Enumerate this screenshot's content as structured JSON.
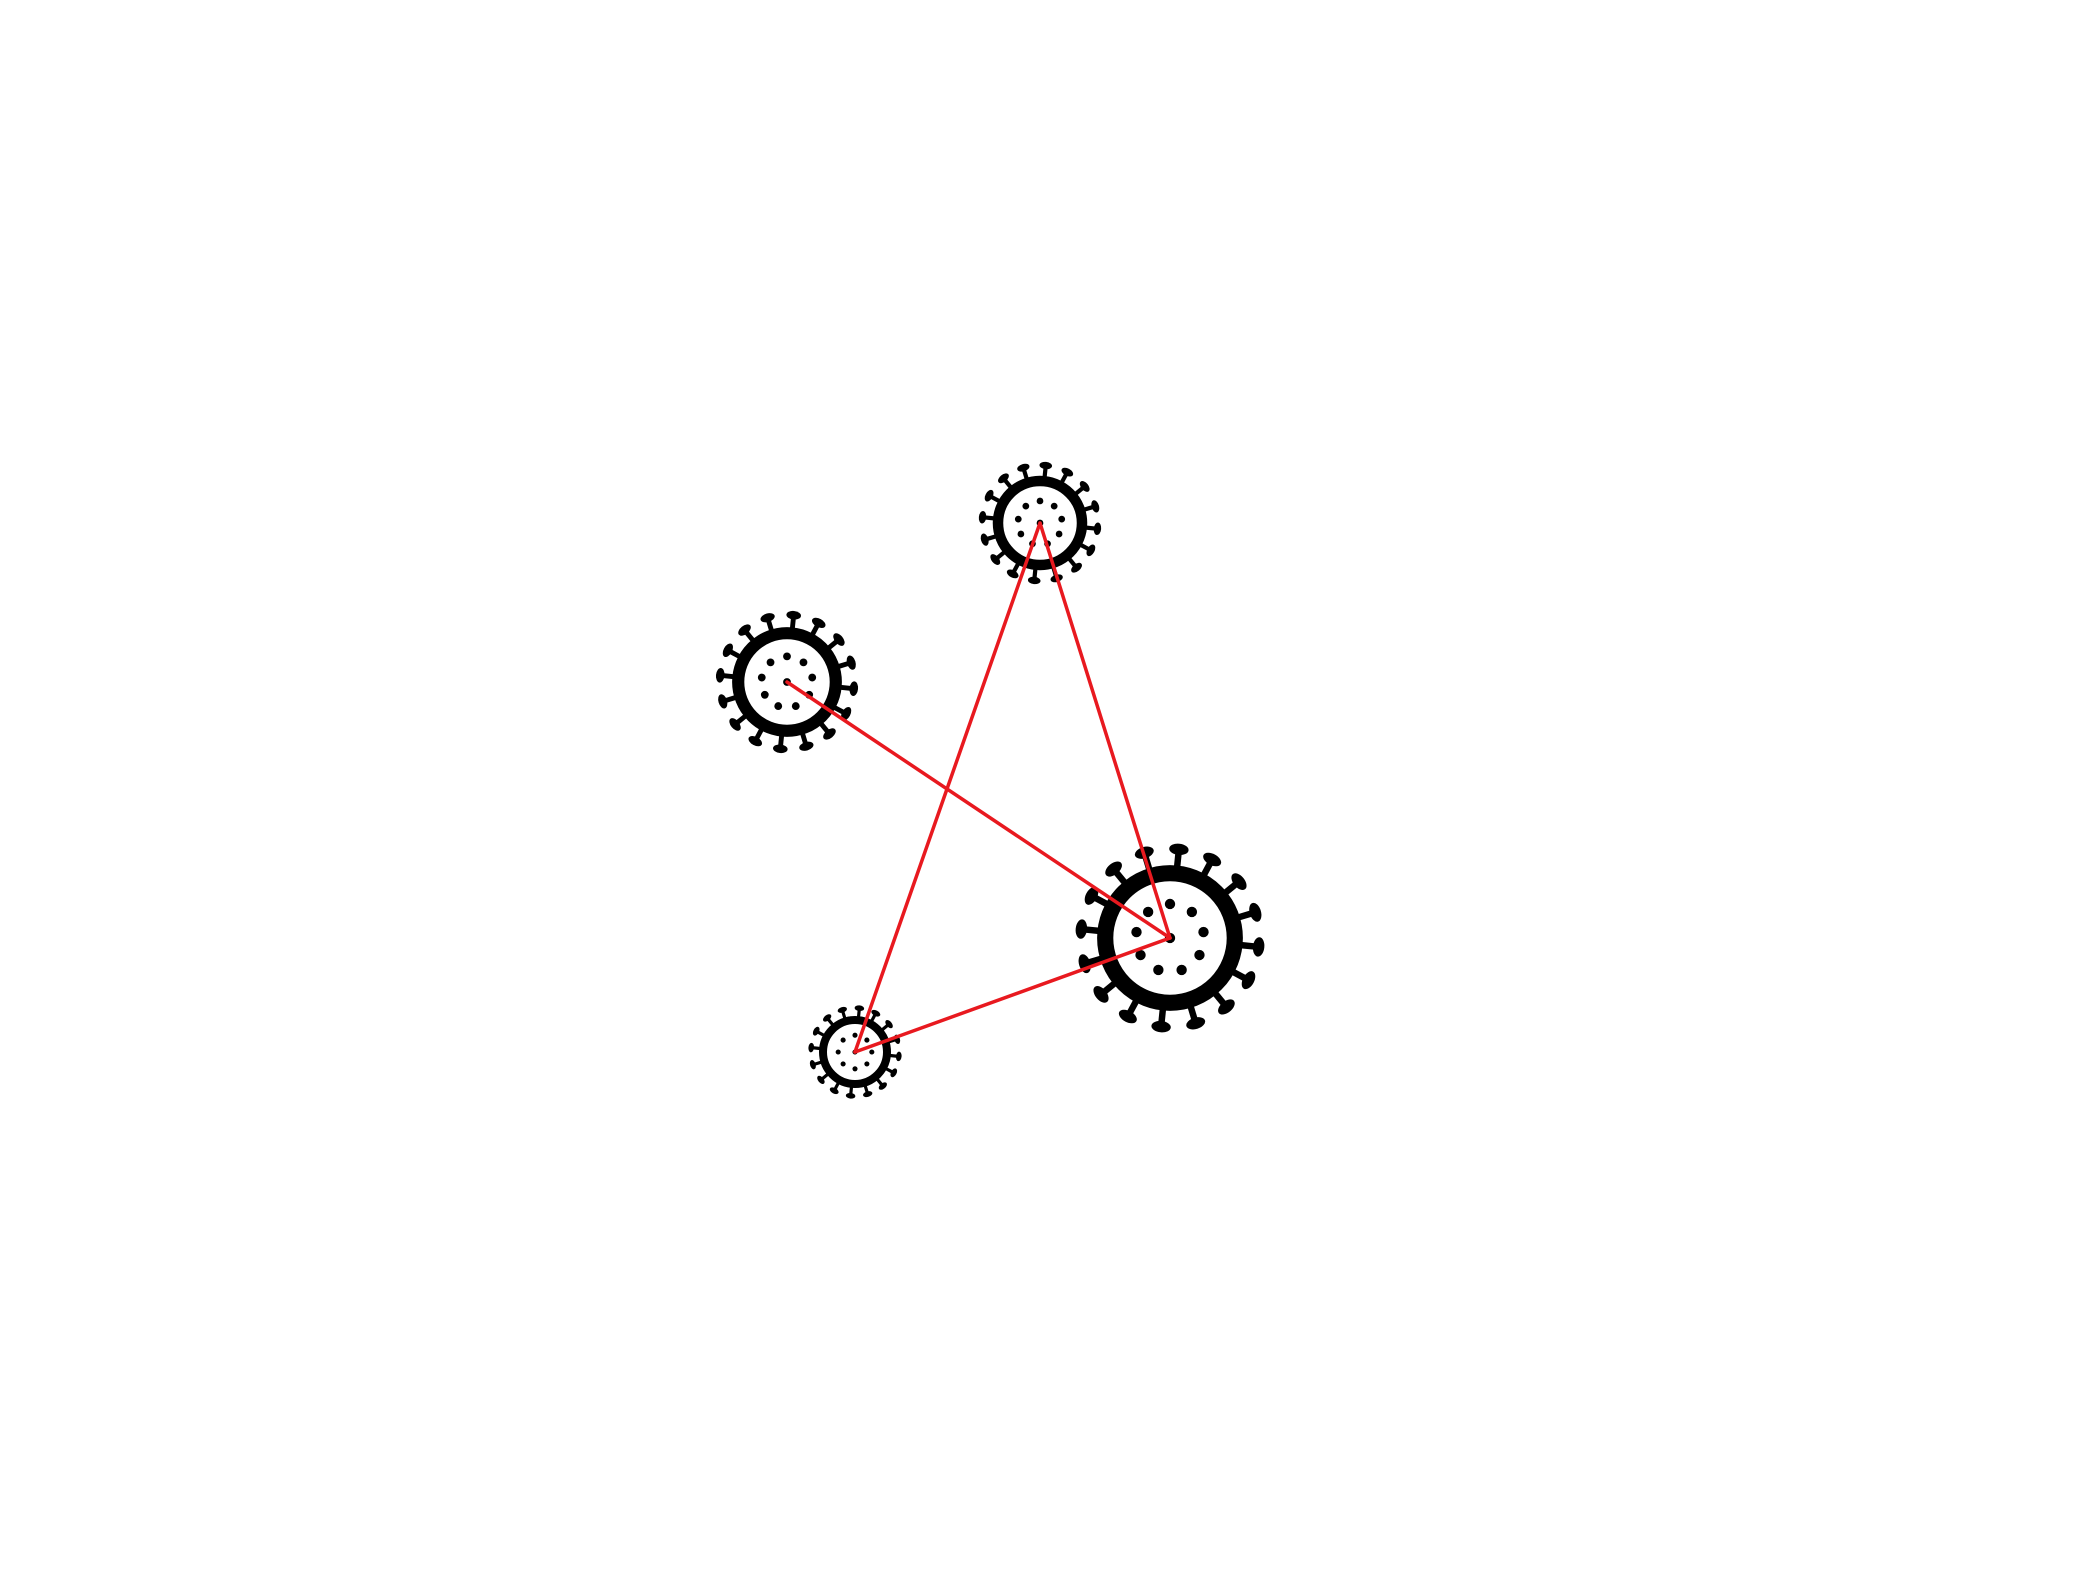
{
  "diagram": {
    "type": "network",
    "nodes": [
      {
        "id": "virus-top",
        "icon": "virus-icon"
      },
      {
        "id": "virus-left",
        "icon": "virus-icon"
      },
      {
        "id": "virus-large",
        "icon": "virus-icon"
      },
      {
        "id": "virus-small",
        "icon": "virus-icon"
      }
    ],
    "edges": [
      {
        "from": "virus-left",
        "to": "virus-large"
      },
      {
        "from": "virus-top",
        "to": "virus-large"
      },
      {
        "from": "virus-top",
        "to": "virus-small"
      },
      {
        "from": "virus-small",
        "to": "virus-large"
      }
    ]
  },
  "colors": {
    "background": "#ffffff",
    "icon": "#000000",
    "link": "#e8191f"
  }
}
